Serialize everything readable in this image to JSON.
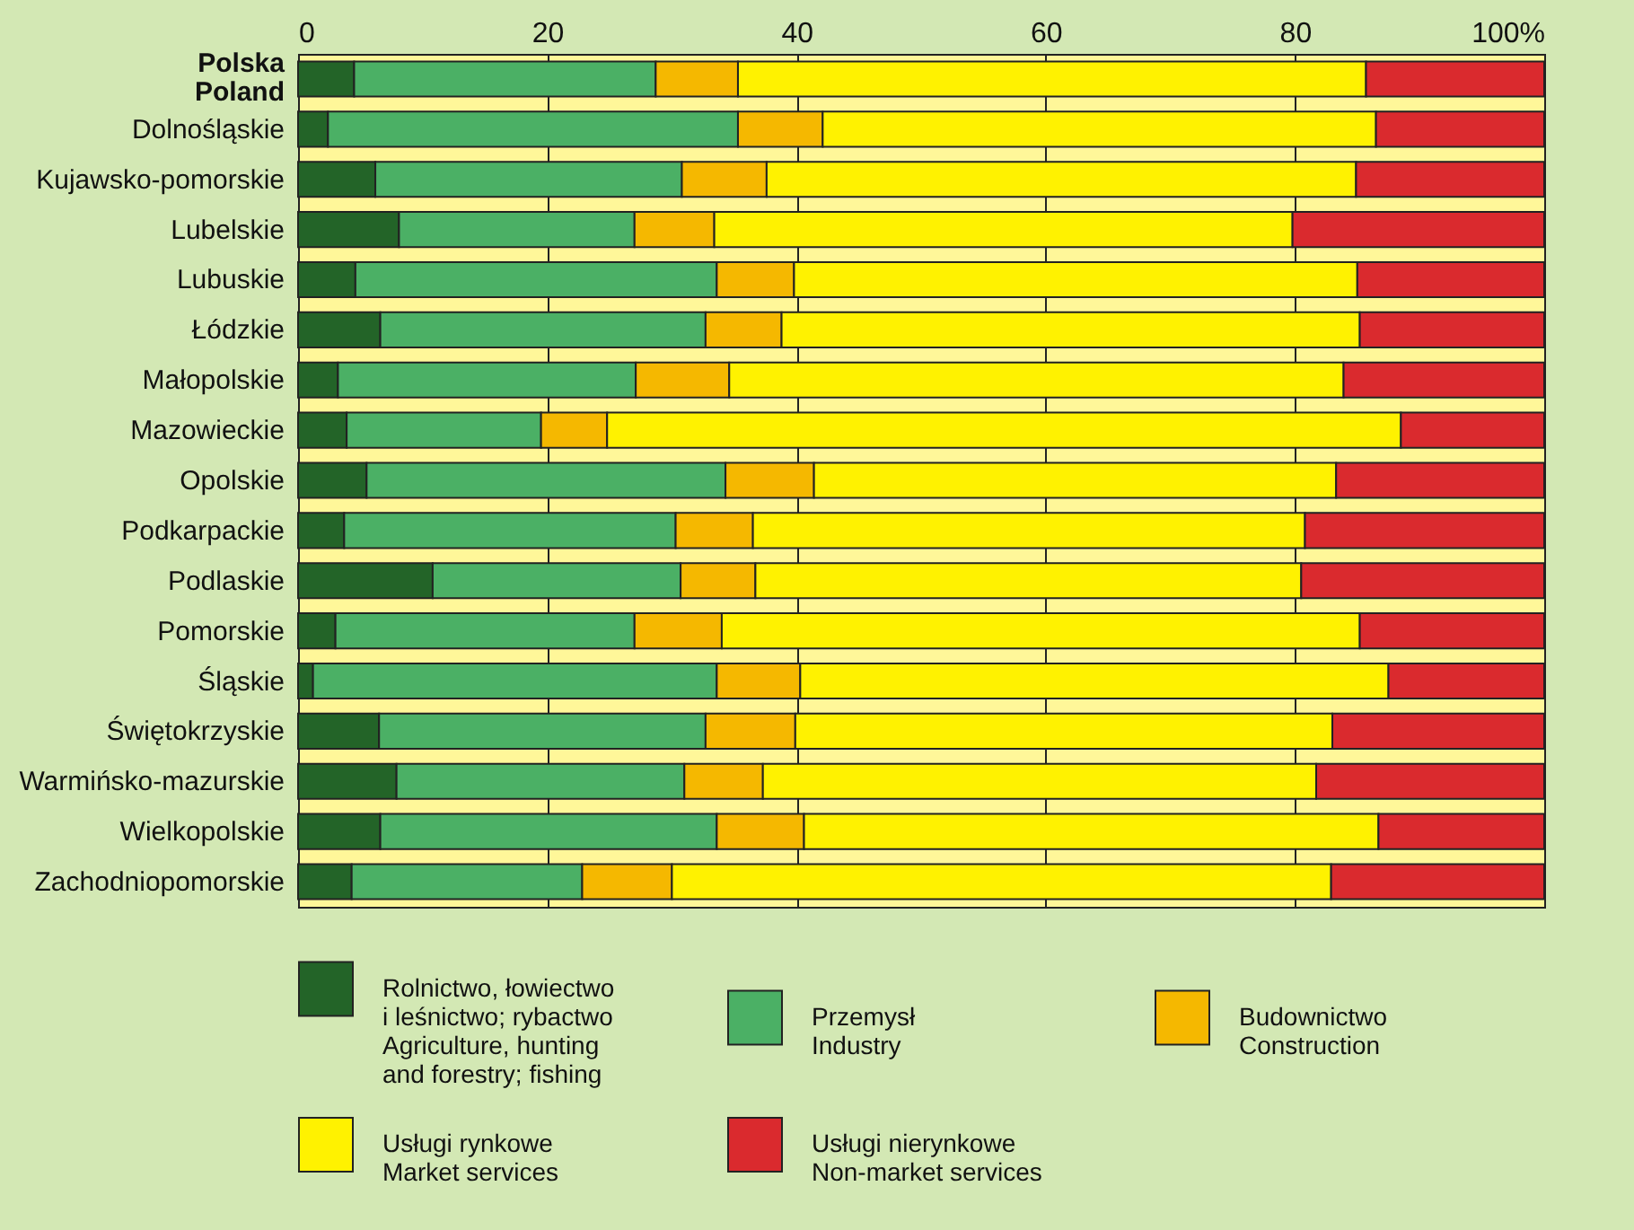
{
  "chart_data": {
    "type": "bar",
    "orientation": "horizontal",
    "stacked": true,
    "categories": [
      "Polska\nPoland",
      "Dolnośląskie",
      "Kujawsko-pomorskie",
      "Lubelskie",
      "Lubuskie",
      "Łódzkie",
      "Małopolskie",
      "Mazowieckie",
      "Opolskie",
      "Podkarpackie",
      "Podlaskie",
      "Pomorskie",
      "Śląskie",
      "Świętokrzyskie",
      "Warmińsko-mazurskie",
      "Wielkopolskie",
      "Zachodniopomorskie"
    ],
    "series": [
      {
        "name": "Rolnictwo, łowiectwo\ni leśnictwo; rybactwo\nAgriculture, hunting\nand forestry; fishing",
        "color": "#236428",
        "values": [
          4.5,
          2.4,
          6.2,
          8.1,
          4.6,
          6.6,
          3.2,
          3.9,
          5.5,
          3.7,
          10.8,
          3.0,
          1.2,
          6.5,
          7.9,
          6.6,
          4.3
        ]
      },
      {
        "name": "Przemysł\nIndustry",
        "color": "#4bb065",
        "values": [
          24.2,
          32.9,
          24.6,
          18.9,
          29.0,
          26.1,
          23.9,
          15.6,
          28.8,
          26.6,
          19.9,
          24.0,
          32.4,
          26.2,
          23.1,
          27.0,
          18.5
        ]
      },
      {
        "name": "Budownictwo\nConstruction",
        "color": "#f5b800",
        "values": [
          6.6,
          6.8,
          6.8,
          6.4,
          6.2,
          6.1,
          7.5,
          5.3,
          7.1,
          6.2,
          6.0,
          7.0,
          6.7,
          7.2,
          6.3,
          7.0,
          7.2
        ]
      },
      {
        "name": "Usługi rynkowe\nMarket services",
        "color": "#fff200",
        "values": [
          50.4,
          44.4,
          47.3,
          46.4,
          45.2,
          46.4,
          49.3,
          63.7,
          41.9,
          44.3,
          43.8,
          51.2,
          47.2,
          43.1,
          44.4,
          46.1,
          52.9
        ]
      },
      {
        "name": "Usługi nierynkowe\nNon-market services",
        "color": "#da2a2e",
        "values": [
          14.3,
          13.5,
          15.1,
          20.2,
          15.0,
          14.8,
          16.1,
          11.5,
          16.7,
          19.2,
          19.5,
          14.8,
          12.5,
          17.0,
          18.3,
          13.3,
          17.1
        ]
      }
    ],
    "xlim": [
      0,
      100
    ],
    "xticks": [
      0,
      20,
      40,
      60,
      80,
      {
        "value": 100,
        "label": "100%"
      }
    ],
    "grid": "x",
    "legend": "bottom"
  }
}
